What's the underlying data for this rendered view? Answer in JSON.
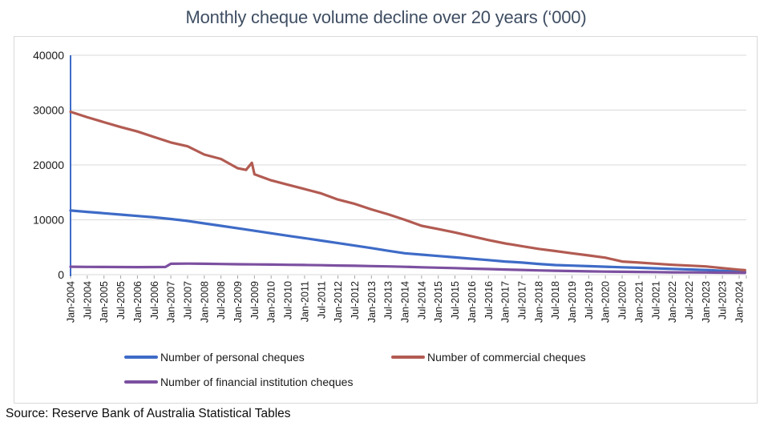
{
  "title": "Monthly cheque volume decline over 20 years (‘000)",
  "source_note": "Source: Reserve Bank of Australia Statistical Tables",
  "chart_data": {
    "type": "line",
    "title": "Monthly cheque volume decline over 20 years (‘000)",
    "unit": "thousands of cheques per month",
    "xlabel": "",
    "ylabel": "",
    "ylim": [
      0,
      40000
    ],
    "y_ticks": [
      0,
      10000,
      20000,
      30000,
      40000
    ],
    "grid": true,
    "legend_position": "bottom",
    "y_axis_line_color": "#3E6BC7",
    "gridline_color": "#D9D9D9",
    "tick_color": "#A6A6A6",
    "x_tick_labels": [
      "Jan-2004",
      "Jul-2004",
      "Jan-2005",
      "Jul-2005",
      "Jan-2006",
      "Jul-2006",
      "Jan-2007",
      "Jul-2007",
      "Jan-2008",
      "Jul-2008",
      "Jan-2009",
      "Jul-2009",
      "Jan-2010",
      "Jul-2010",
      "Jan-2011",
      "Jul-2011",
      "Jan-2012",
      "Jul-2012",
      "Jan-2013",
      "Jul-2013",
      "Jan-2014",
      "Jul-2014",
      "Jan-2015",
      "Jul-2015",
      "Jan-2016",
      "Jul-2016",
      "Jan-2017",
      "Jul-2017",
      "Jan-2018",
      "Jul-2018",
      "Jan-2019",
      "Jul-2019",
      "Jan-2020",
      "Jul-2020",
      "Jan-2021",
      "Jul-2021",
      "Jan-2022",
      "Jul-2022",
      "Jan-2023",
      "Jul-2023",
      "Jan-2024"
    ],
    "series": [
      {
        "name": "Number of personal cheques",
        "color": "#3E6BC7",
        "values": [
          11700,
          11450,
          11200,
          10950,
          10700,
          10450,
          10150,
          9800,
          9350,
          8900,
          8450,
          8000,
          7550,
          7100,
          6650,
          6200,
          5750,
          5300,
          4850,
          4350,
          3900,
          3650,
          3400,
          3150,
          2900,
          2650,
          2400,
          2200,
          1950,
          1750,
          1650,
          1550,
          1450,
          1350,
          1250,
          1150,
          1050,
          950,
          850,
          700,
          550
        ],
        "extra_points": [
          {
            "x": 40.35,
            "v": 510
          }
        ]
      },
      {
        "name": "Number of commercial cheques",
        "color": "#B25B52",
        "values": [
          29700,
          28700,
          27800,
          26900,
          26100,
          25100,
          24100,
          23400,
          21900,
          21100,
          19400,
          18300,
          17200,
          16400,
          15600,
          14800,
          13700,
          12900,
          11900,
          11000,
          10000,
          8900,
          8300,
          7700,
          7000,
          6300,
          5700,
          5200,
          4700,
          4300,
          3900,
          3500,
          3100,
          2400,
          2200,
          2000,
          1800,
          1650,
          1500,
          1200,
          900
        ],
        "extra_points": [
          {
            "x": 10.5,
            "v": 19100
          },
          {
            "x": 10.85,
            "v": 20400
          },
          {
            "x": 40.35,
            "v": 820
          }
        ]
      },
      {
        "name": "Number of financial institution cheques",
        "color": "#7C50A0",
        "values": [
          1450,
          1420,
          1400,
          1380,
          1370,
          1390,
          1980,
          2020,
          1990,
          1940,
          1900,
          1870,
          1840,
          1800,
          1760,
          1720,
          1670,
          1620,
          1560,
          1500,
          1430,
          1350,
          1270,
          1190,
          1100,
          1020,
          940,
          860,
          780,
          710,
          650,
          600,
          560,
          520,
          490,
          460,
          430,
          410,
          390,
          370,
          355
        ],
        "extra_points": [
          {
            "x": 5.68,
            "v": 1395
          },
          {
            "x": 40.35,
            "v": 350
          }
        ]
      }
    ]
  }
}
